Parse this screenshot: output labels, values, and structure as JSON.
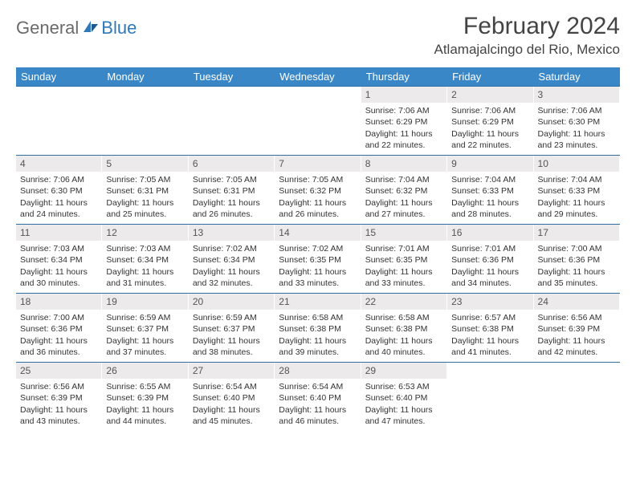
{
  "brand": {
    "general": "General",
    "blue": "Blue"
  },
  "title": "February 2024",
  "location": "Atlamajalcingo del Rio, Mexico",
  "colors": {
    "header_bg": "#3a87c8",
    "row_border": "#2f6fa3",
    "daynum_bg": "#eceaea",
    "logo_gray": "#6a6a6a",
    "logo_blue": "#2f79b9"
  },
  "weekdays": [
    "Sunday",
    "Monday",
    "Tuesday",
    "Wednesday",
    "Thursday",
    "Friday",
    "Saturday"
  ],
  "weeks": [
    [
      null,
      null,
      null,
      null,
      {
        "n": "1",
        "sr": "Sunrise: 7:06 AM",
        "ss": "Sunset: 6:29 PM",
        "d1": "Daylight: 11 hours",
        "d2": "and 22 minutes."
      },
      {
        "n": "2",
        "sr": "Sunrise: 7:06 AM",
        "ss": "Sunset: 6:29 PM",
        "d1": "Daylight: 11 hours",
        "d2": "and 22 minutes."
      },
      {
        "n": "3",
        "sr": "Sunrise: 7:06 AM",
        "ss": "Sunset: 6:30 PM",
        "d1": "Daylight: 11 hours",
        "d2": "and 23 minutes."
      }
    ],
    [
      {
        "n": "4",
        "sr": "Sunrise: 7:06 AM",
        "ss": "Sunset: 6:30 PM",
        "d1": "Daylight: 11 hours",
        "d2": "and 24 minutes."
      },
      {
        "n": "5",
        "sr": "Sunrise: 7:05 AM",
        "ss": "Sunset: 6:31 PM",
        "d1": "Daylight: 11 hours",
        "d2": "and 25 minutes."
      },
      {
        "n": "6",
        "sr": "Sunrise: 7:05 AM",
        "ss": "Sunset: 6:31 PM",
        "d1": "Daylight: 11 hours",
        "d2": "and 26 minutes."
      },
      {
        "n": "7",
        "sr": "Sunrise: 7:05 AM",
        "ss": "Sunset: 6:32 PM",
        "d1": "Daylight: 11 hours",
        "d2": "and 26 minutes."
      },
      {
        "n": "8",
        "sr": "Sunrise: 7:04 AM",
        "ss": "Sunset: 6:32 PM",
        "d1": "Daylight: 11 hours",
        "d2": "and 27 minutes."
      },
      {
        "n": "9",
        "sr": "Sunrise: 7:04 AM",
        "ss": "Sunset: 6:33 PM",
        "d1": "Daylight: 11 hours",
        "d2": "and 28 minutes."
      },
      {
        "n": "10",
        "sr": "Sunrise: 7:04 AM",
        "ss": "Sunset: 6:33 PM",
        "d1": "Daylight: 11 hours",
        "d2": "and 29 minutes."
      }
    ],
    [
      {
        "n": "11",
        "sr": "Sunrise: 7:03 AM",
        "ss": "Sunset: 6:34 PM",
        "d1": "Daylight: 11 hours",
        "d2": "and 30 minutes."
      },
      {
        "n": "12",
        "sr": "Sunrise: 7:03 AM",
        "ss": "Sunset: 6:34 PM",
        "d1": "Daylight: 11 hours",
        "d2": "and 31 minutes."
      },
      {
        "n": "13",
        "sr": "Sunrise: 7:02 AM",
        "ss": "Sunset: 6:34 PM",
        "d1": "Daylight: 11 hours",
        "d2": "and 32 minutes."
      },
      {
        "n": "14",
        "sr": "Sunrise: 7:02 AM",
        "ss": "Sunset: 6:35 PM",
        "d1": "Daylight: 11 hours",
        "d2": "and 33 minutes."
      },
      {
        "n": "15",
        "sr": "Sunrise: 7:01 AM",
        "ss": "Sunset: 6:35 PM",
        "d1": "Daylight: 11 hours",
        "d2": "and 33 minutes."
      },
      {
        "n": "16",
        "sr": "Sunrise: 7:01 AM",
        "ss": "Sunset: 6:36 PM",
        "d1": "Daylight: 11 hours",
        "d2": "and 34 minutes."
      },
      {
        "n": "17",
        "sr": "Sunrise: 7:00 AM",
        "ss": "Sunset: 6:36 PM",
        "d1": "Daylight: 11 hours",
        "d2": "and 35 minutes."
      }
    ],
    [
      {
        "n": "18",
        "sr": "Sunrise: 7:00 AM",
        "ss": "Sunset: 6:36 PM",
        "d1": "Daylight: 11 hours",
        "d2": "and 36 minutes."
      },
      {
        "n": "19",
        "sr": "Sunrise: 6:59 AM",
        "ss": "Sunset: 6:37 PM",
        "d1": "Daylight: 11 hours",
        "d2": "and 37 minutes."
      },
      {
        "n": "20",
        "sr": "Sunrise: 6:59 AM",
        "ss": "Sunset: 6:37 PM",
        "d1": "Daylight: 11 hours",
        "d2": "and 38 minutes."
      },
      {
        "n": "21",
        "sr": "Sunrise: 6:58 AM",
        "ss": "Sunset: 6:38 PM",
        "d1": "Daylight: 11 hours",
        "d2": "and 39 minutes."
      },
      {
        "n": "22",
        "sr": "Sunrise: 6:58 AM",
        "ss": "Sunset: 6:38 PM",
        "d1": "Daylight: 11 hours",
        "d2": "and 40 minutes."
      },
      {
        "n": "23",
        "sr": "Sunrise: 6:57 AM",
        "ss": "Sunset: 6:38 PM",
        "d1": "Daylight: 11 hours",
        "d2": "and 41 minutes."
      },
      {
        "n": "24",
        "sr": "Sunrise: 6:56 AM",
        "ss": "Sunset: 6:39 PM",
        "d1": "Daylight: 11 hours",
        "d2": "and 42 minutes."
      }
    ],
    [
      {
        "n": "25",
        "sr": "Sunrise: 6:56 AM",
        "ss": "Sunset: 6:39 PM",
        "d1": "Daylight: 11 hours",
        "d2": "and 43 minutes."
      },
      {
        "n": "26",
        "sr": "Sunrise: 6:55 AM",
        "ss": "Sunset: 6:39 PM",
        "d1": "Daylight: 11 hours",
        "d2": "and 44 minutes."
      },
      {
        "n": "27",
        "sr": "Sunrise: 6:54 AM",
        "ss": "Sunset: 6:40 PM",
        "d1": "Daylight: 11 hours",
        "d2": "and 45 minutes."
      },
      {
        "n": "28",
        "sr": "Sunrise: 6:54 AM",
        "ss": "Sunset: 6:40 PM",
        "d1": "Daylight: 11 hours",
        "d2": "and 46 minutes."
      },
      {
        "n": "29",
        "sr": "Sunrise: 6:53 AM",
        "ss": "Sunset: 6:40 PM",
        "d1": "Daylight: 11 hours",
        "d2": "and 47 minutes."
      },
      null,
      null
    ]
  ]
}
